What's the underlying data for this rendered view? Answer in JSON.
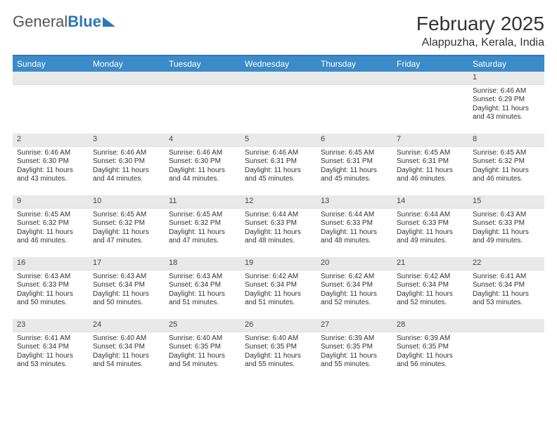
{
  "logo": {
    "text1": "General",
    "text2": "Blue"
  },
  "title": "February 2025",
  "location": "Alappuzha, Kerala, India",
  "colors": {
    "header_bar": "#3b8bc9",
    "rule": "#2f76b8",
    "daynum_bg": "#e9e9e9",
    "text": "#333333",
    "background": "#ffffff"
  },
  "weekdays": [
    "Sunday",
    "Monday",
    "Tuesday",
    "Wednesday",
    "Thursday",
    "Friday",
    "Saturday"
  ],
  "weeks": [
    [
      {
        "blank": true
      },
      {
        "blank": true
      },
      {
        "blank": true
      },
      {
        "blank": true
      },
      {
        "blank": true
      },
      {
        "blank": true
      },
      {
        "day": "1",
        "sunrise": "Sunrise: 6:46 AM",
        "sunset": "Sunset: 6:29 PM",
        "daylight": "Daylight: 11 hours and 43 minutes."
      }
    ],
    [
      {
        "day": "2",
        "sunrise": "Sunrise: 6:46 AM",
        "sunset": "Sunset: 6:30 PM",
        "daylight": "Daylight: 11 hours and 43 minutes."
      },
      {
        "day": "3",
        "sunrise": "Sunrise: 6:46 AM",
        "sunset": "Sunset: 6:30 PM",
        "daylight": "Daylight: 11 hours and 44 minutes."
      },
      {
        "day": "4",
        "sunrise": "Sunrise: 6:46 AM",
        "sunset": "Sunset: 6:30 PM",
        "daylight": "Daylight: 11 hours and 44 minutes."
      },
      {
        "day": "5",
        "sunrise": "Sunrise: 6:46 AM",
        "sunset": "Sunset: 6:31 PM",
        "daylight": "Daylight: 11 hours and 45 minutes."
      },
      {
        "day": "6",
        "sunrise": "Sunrise: 6:45 AM",
        "sunset": "Sunset: 6:31 PM",
        "daylight": "Daylight: 11 hours and 45 minutes."
      },
      {
        "day": "7",
        "sunrise": "Sunrise: 6:45 AM",
        "sunset": "Sunset: 6:31 PM",
        "daylight": "Daylight: 11 hours and 46 minutes."
      },
      {
        "day": "8",
        "sunrise": "Sunrise: 6:45 AM",
        "sunset": "Sunset: 6:32 PM",
        "daylight": "Daylight: 11 hours and 46 minutes."
      }
    ],
    [
      {
        "day": "9",
        "sunrise": "Sunrise: 6:45 AM",
        "sunset": "Sunset: 6:32 PM",
        "daylight": "Daylight: 11 hours and 46 minutes."
      },
      {
        "day": "10",
        "sunrise": "Sunrise: 6:45 AM",
        "sunset": "Sunset: 6:32 PM",
        "daylight": "Daylight: 11 hours and 47 minutes."
      },
      {
        "day": "11",
        "sunrise": "Sunrise: 6:45 AM",
        "sunset": "Sunset: 6:32 PM",
        "daylight": "Daylight: 11 hours and 47 minutes."
      },
      {
        "day": "12",
        "sunrise": "Sunrise: 6:44 AM",
        "sunset": "Sunset: 6:33 PM",
        "daylight": "Daylight: 11 hours and 48 minutes."
      },
      {
        "day": "13",
        "sunrise": "Sunrise: 6:44 AM",
        "sunset": "Sunset: 6:33 PM",
        "daylight": "Daylight: 11 hours and 48 minutes."
      },
      {
        "day": "14",
        "sunrise": "Sunrise: 6:44 AM",
        "sunset": "Sunset: 6:33 PM",
        "daylight": "Daylight: 11 hours and 49 minutes."
      },
      {
        "day": "15",
        "sunrise": "Sunrise: 6:43 AM",
        "sunset": "Sunset: 6:33 PM",
        "daylight": "Daylight: 11 hours and 49 minutes."
      }
    ],
    [
      {
        "day": "16",
        "sunrise": "Sunrise: 6:43 AM",
        "sunset": "Sunset: 6:33 PM",
        "daylight": "Daylight: 11 hours and 50 minutes."
      },
      {
        "day": "17",
        "sunrise": "Sunrise: 6:43 AM",
        "sunset": "Sunset: 6:34 PM",
        "daylight": "Daylight: 11 hours and 50 minutes."
      },
      {
        "day": "18",
        "sunrise": "Sunrise: 6:43 AM",
        "sunset": "Sunset: 6:34 PM",
        "daylight": "Daylight: 11 hours and 51 minutes."
      },
      {
        "day": "19",
        "sunrise": "Sunrise: 6:42 AM",
        "sunset": "Sunset: 6:34 PM",
        "daylight": "Daylight: 11 hours and 51 minutes."
      },
      {
        "day": "20",
        "sunrise": "Sunrise: 6:42 AM",
        "sunset": "Sunset: 6:34 PM",
        "daylight": "Daylight: 11 hours and 52 minutes."
      },
      {
        "day": "21",
        "sunrise": "Sunrise: 6:42 AM",
        "sunset": "Sunset: 6:34 PM",
        "daylight": "Daylight: 11 hours and 52 minutes."
      },
      {
        "day": "22",
        "sunrise": "Sunrise: 6:41 AM",
        "sunset": "Sunset: 6:34 PM",
        "daylight": "Daylight: 11 hours and 53 minutes."
      }
    ],
    [
      {
        "day": "23",
        "sunrise": "Sunrise: 6:41 AM",
        "sunset": "Sunset: 6:34 PM",
        "daylight": "Daylight: 11 hours and 53 minutes."
      },
      {
        "day": "24",
        "sunrise": "Sunrise: 6:40 AM",
        "sunset": "Sunset: 6:34 PM",
        "daylight": "Daylight: 11 hours and 54 minutes."
      },
      {
        "day": "25",
        "sunrise": "Sunrise: 6:40 AM",
        "sunset": "Sunset: 6:35 PM",
        "daylight": "Daylight: 11 hours and 54 minutes."
      },
      {
        "day": "26",
        "sunrise": "Sunrise: 6:40 AM",
        "sunset": "Sunset: 6:35 PM",
        "daylight": "Daylight: 11 hours and 55 minutes."
      },
      {
        "day": "27",
        "sunrise": "Sunrise: 6:39 AM",
        "sunset": "Sunset: 6:35 PM",
        "daylight": "Daylight: 11 hours and 55 minutes."
      },
      {
        "day": "28",
        "sunrise": "Sunrise: 6:39 AM",
        "sunset": "Sunset: 6:35 PM",
        "daylight": "Daylight: 11 hours and 56 minutes."
      },
      {
        "blank": true
      }
    ]
  ]
}
